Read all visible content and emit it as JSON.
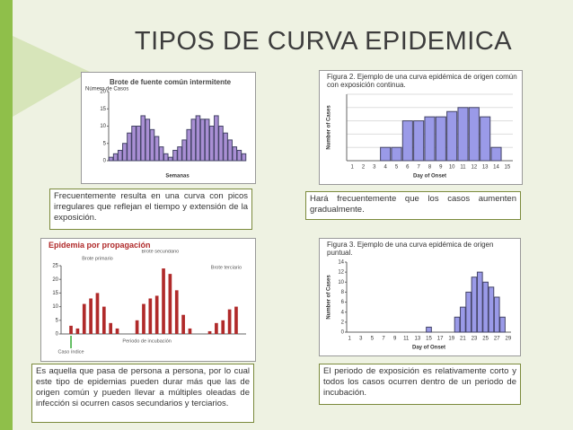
{
  "title": "TIPOS DE CURVA EPIDEMICA",
  "panels": [
    {
      "chart": {
        "type": "bar",
        "title": "Brote de fuente común intermitente",
        "y_label": "Número de Casos",
        "x_label": "Semanas",
        "values": [
          1,
          2,
          3,
          5,
          8,
          10,
          10,
          13,
          12,
          9,
          7,
          4,
          2,
          1,
          3,
          4,
          6,
          9,
          12,
          13,
          12,
          12,
          10,
          13,
          10,
          8,
          6,
          4,
          3,
          2
        ],
        "ylim": [
          0,
          20
        ],
        "yticks": [
          0,
          5,
          10,
          15,
          20
        ],
        "color": "#a98fd4"
      },
      "caption": "Frecuentemente resulta  en una curva con picos irregulares que reflejan el tiempo y extensión  de la exposición."
    },
    {
      "chart": {
        "type": "bar",
        "title": "Figura 2.  Ejemplo de una curva epidémica de origen común con exposición continua.",
        "y_label": "Number of Cases",
        "x_label": "Day of Onset",
        "categories": [
          1,
          2,
          3,
          4,
          5,
          6,
          7,
          8,
          9,
          10,
          11,
          12,
          13,
          14,
          15
        ],
        "values": [
          0,
          0,
          0,
          1,
          1,
          3,
          3,
          3.3,
          3.3,
          3.7,
          4,
          4,
          3.3,
          1,
          0
        ],
        "ylim": [
          0,
          5
        ],
        "color": "#9a9ae8"
      },
      "caption": "Hará  frecuentemente  que  los  casos  aumenten gradualmente."
    },
    {
      "chart": {
        "type": "bar",
        "title": "Epidemia por propagación",
        "y_label": null,
        "x_label": null,
        "values": [
          0,
          3,
          2,
          11,
          13,
          15,
          10,
          4,
          2,
          0,
          0,
          5,
          11,
          13,
          14,
          24,
          22,
          16,
          7,
          2,
          0,
          0,
          1,
          4,
          5,
          9,
          10,
          0
        ],
        "ylim": [
          0,
          25
        ],
        "yticks": [
          0,
          5,
          10,
          15,
          20,
          25
        ],
        "color": "#b02a2a",
        "annotations": [
          "Brote primario",
          "Brote secundario",
          "Brote terciario",
          "Periodo de incubación",
          "Caso índice"
        ]
      },
      "caption": "Es aquella que pasa de persona  a persona, por lo cual este tipo de epidemias pueden durar más que las de origen común y pueden llevar a múltiples oleadas de infección si ocurren casos secundarios y terciarios."
    },
    {
      "chart": {
        "type": "bar",
        "title": "Figura 3.  Ejemplo de una curva epidémica de origen puntual.",
        "y_label": "Number of Cases",
        "x_label": "Day of Onset",
        "categories": [
          1,
          null,
          3,
          null,
          5,
          null,
          7,
          null,
          9,
          null,
          11,
          null,
          13,
          null,
          15,
          null,
          17,
          null,
          19,
          null,
          21,
          null,
          23,
          null,
          25,
          null,
          27,
          null,
          29
        ],
        "values": [
          0,
          0,
          0,
          0,
          0,
          0,
          0,
          0,
          0,
          0,
          0,
          0,
          0,
          0,
          1,
          0,
          0,
          0,
          0,
          3,
          5,
          8,
          11,
          12,
          10,
          9,
          7,
          3,
          0
        ],
        "ylim": [
          0,
          14
        ],
        "yticks": [
          0,
          2,
          4,
          6,
          8,
          10,
          12,
          14
        ],
        "color": "#9a9ae8"
      },
      "caption": "El periodo  de exposición es relativamente corto y todos los casos ocurren dentro de un periodo de incubación."
    }
  ]
}
